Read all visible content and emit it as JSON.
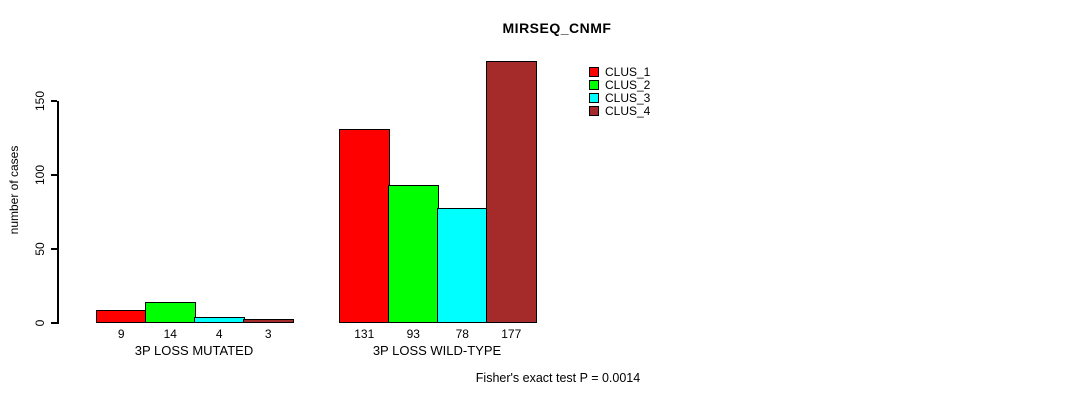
{
  "chart_data": {
    "type": "bar",
    "title": "MIRSEQ_CNMF",
    "ylabel": "number of cases",
    "xlabel": "",
    "ylim": [
      0,
      177
    ],
    "yticks": [
      0,
      50,
      100,
      150
    ],
    "grid": false,
    "legend_position": "top-right",
    "categories": [
      "3P LOSS MUTATED",
      "3P LOSS WILD-TYPE"
    ],
    "series": [
      {
        "name": "CLUS_1",
        "color": "#ff0000",
        "values": [
          9,
          131
        ]
      },
      {
        "name": "CLUS_2",
        "color": "#00ff00",
        "values": [
          14,
          93
        ]
      },
      {
        "name": "CLUS_3",
        "color": "#00ffff",
        "values": [
          4,
          78
        ]
      },
      {
        "name": "CLUS_4",
        "color": "#a52a2a",
        "values": [
          3,
          177
        ]
      }
    ],
    "bar_value_labels": {
      "3P LOSS MUTATED": [
        9,
        14,
        4,
        3
      ],
      "3P LOSS WILD-TYPE": [
        131,
        93,
        78,
        177
      ]
    },
    "annotation": "Fisher's exact test P = 0.0014"
  }
}
